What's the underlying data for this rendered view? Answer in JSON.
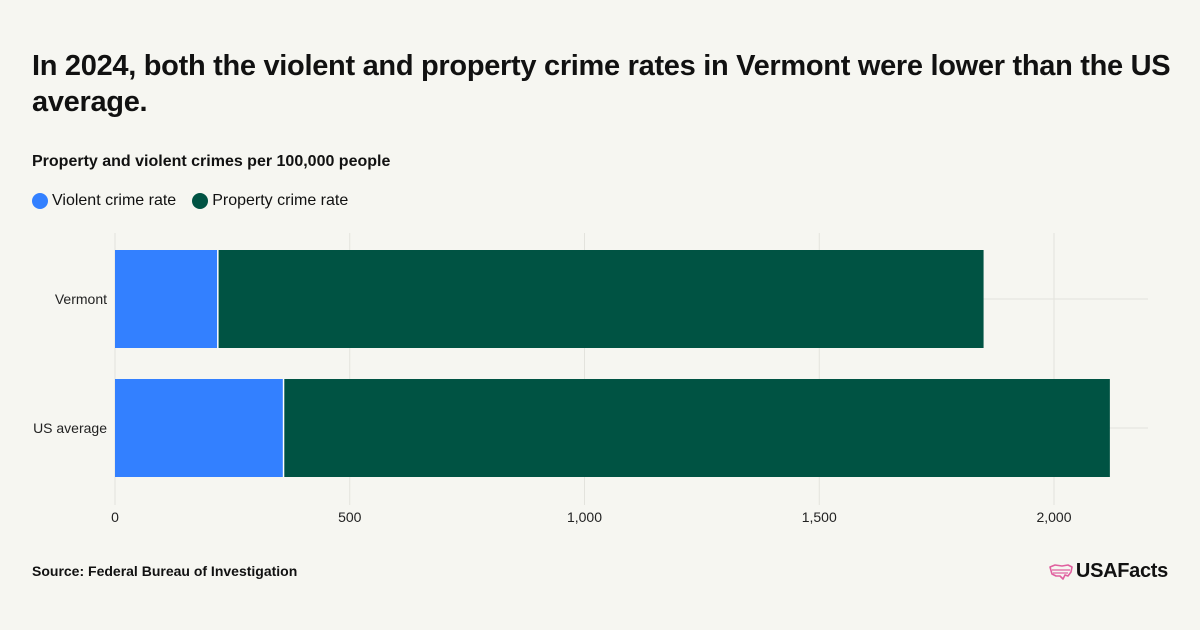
{
  "title": "In 2024, both the violent and property crime rates in Vermont were lower than the US average.",
  "subtitle": "Property and violent crimes per 100,000 people",
  "source": "Source: Federal Bureau of Investigation",
  "logo": {
    "text": "USAFacts",
    "icon": "us-map-logo-icon"
  },
  "colors": {
    "violent": "#3380ff",
    "property": "#005343",
    "background": "#f6f6f1",
    "grid": "#e3e3dd",
    "logo": "#e0609f"
  },
  "chart_data": {
    "type": "bar",
    "orientation": "horizontal",
    "stacked": true,
    "categories": [
      "Vermont",
      "US average"
    ],
    "series": [
      {
        "name": "Violent crime rate",
        "values": [
          219,
          359
        ]
      },
      {
        "name": "Property crime rate",
        "values": [
          1631,
          1760
        ]
      }
    ],
    "xlim": [
      0,
      2200
    ],
    "xticks": [
      0,
      500,
      1000,
      1500,
      2000
    ],
    "xtick_labels": [
      "0",
      "500",
      "1,000",
      "1,500",
      "2,000"
    ],
    "grid": true,
    "legend_position": "top-left"
  }
}
